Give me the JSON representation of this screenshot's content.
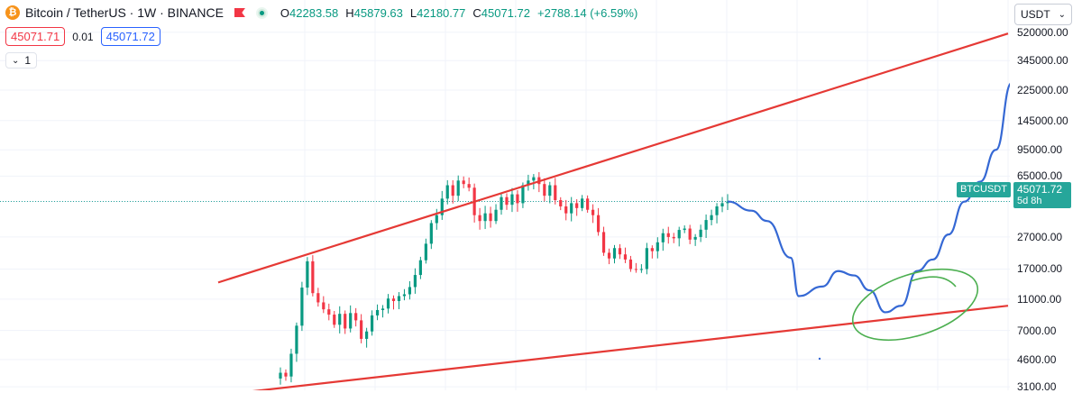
{
  "header": {
    "symbol_title": "Bitcoin / TetherUS · 1W · BINANCE",
    "logo_glyph": "₿",
    "ohlc": [
      {
        "key": "O",
        "value": "42283.58"
      },
      {
        "key": "H",
        "value": "45879.63"
      },
      {
        "key": "L",
        "value": "42180.77"
      },
      {
        "key": "C",
        "value": "45071.72"
      }
    ],
    "change": "+2788.14 (+6.59%)"
  },
  "quote": {
    "sell": "45071.71",
    "spread": "0.01",
    "buy": "45071.72"
  },
  "study": {
    "count": "1"
  },
  "axis": {
    "currency": "USDT",
    "ticks": [
      "520000.00",
      "345000.00",
      "225000.00",
      "145000.00",
      "95000.00",
      "65000.00",
      "45071.72",
      "27000.00",
      "17000.00",
      "11000.00",
      "7000.00",
      "4600.00",
      "3100.00"
    ]
  },
  "price_tag": {
    "symbol": "BTCUSDT",
    "price": "45071.72",
    "countdown": "5d 8h"
  },
  "colors": {
    "up": "#089981",
    "down": "#f23645",
    "trendline": "#e53935",
    "projection": "#3568d4",
    "circle": "#4caf50",
    "last_price": "#26a69a"
  },
  "chart_data": {
    "type": "candlestick",
    "scale": "log",
    "ylim": [
      2800,
      560000
    ],
    "last_price": 45071.72,
    "weekly_closes": [
      3800,
      3600,
      5000,
      7500,
      13000,
      19000,
      12000,
      10500,
      9500,
      8800,
      7600,
      8900,
      7200,
      9000,
      8100,
      6200,
      6900,
      8700,
      9400,
      9600,
      11100,
      10700,
      11500,
      11800,
      13100,
      15600,
      19300,
      24500,
      33000,
      37000,
      47000,
      57000,
      49000,
      61000,
      58000,
      55000,
      37000,
      34000,
      38000,
      34000,
      40000,
      48000,
      43000,
      50000,
      44000,
      57000,
      61000,
      64000,
      58000,
      49000,
      57000,
      46000,
      42000,
      38000,
      44000,
      41000,
      47000,
      40000,
      37000,
      29000,
      21500,
      19800,
      23000,
      21000,
      19500,
      17000,
      16900,
      17000,
      23000,
      22000,
      25000,
      28500,
      27000,
      26500,
      29900,
      30500,
      26000,
      27000,
      30000,
      34500,
      37000,
      42000,
      44000,
      45071.72
    ],
    "projection_points": [
      [
        0,
        45071
      ],
      [
        3,
        39500
      ],
      [
        5,
        34000
      ],
      [
        8,
        20000
      ],
      [
        9,
        11500
      ],
      [
        12,
        13200
      ],
      [
        14,
        16500
      ],
      [
        16,
        15500
      ],
      [
        18,
        12500
      ],
      [
        20,
        9100
      ],
      [
        22,
        10000
      ],
      [
        24,
        16500
      ],
      [
        26,
        19500
      ],
      [
        28,
        28000
      ],
      [
        30,
        45000
      ],
      [
        32,
        60000
      ],
      [
        34,
        95000
      ],
      [
        36,
        250000
      ]
    ],
    "trendlines": [
      {
        "name": "upper",
        "from": [
          0,
          14000
        ],
        "to": [
          144,
          510000
        ]
      },
      {
        "name": "lower",
        "from": [
          0,
          2750
        ],
        "to": [
          144,
          10000
        ]
      }
    ]
  }
}
